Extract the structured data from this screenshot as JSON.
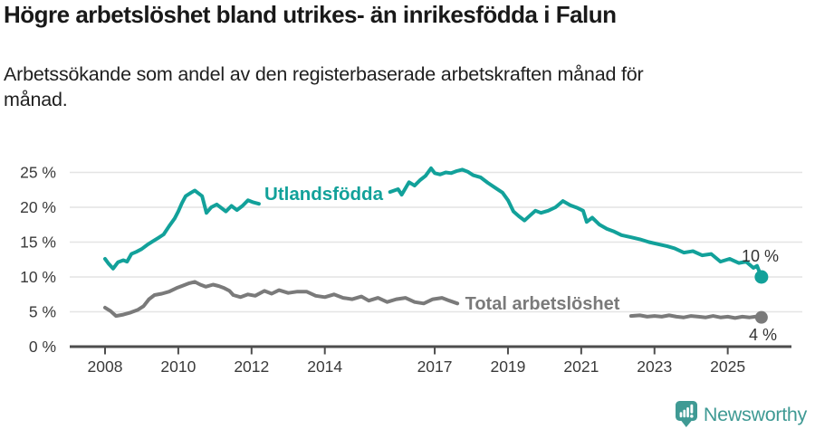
{
  "header": {
    "title": "Högre arbetslöshet bland utrikes- än inrikesfödda i Falun",
    "subtitle": "Arbetssökande som andel av den registerbaserade arbetskraften månad för\nmånad."
  },
  "footer": {
    "brand": "Newsworthy",
    "icon": "newsworthy-pin-barchart-icon"
  },
  "colors": {
    "accent_teal": "#12a19a",
    "series_gray": "#7a7a7a",
    "grid": "#e4e4e4",
    "axis": "#4d4d4d",
    "tick_text": "#3a3a3a",
    "annotation_text": "#333333",
    "title_text": "#191919",
    "brand_teal": "#3f9a94"
  },
  "chart_data": {
    "type": "line",
    "title": "Högre arbetslöshet bland utrikes- än inrikesfödda i Falun",
    "xlabel": "",
    "ylabel": "",
    "grid": true,
    "x_axis": {
      "ticks": [
        2008,
        2010,
        2012,
        2014,
        2017,
        2019,
        2021,
        2023,
        2025
      ]
    },
    "y_axis": {
      "ticks": [
        0,
        5,
        10,
        15,
        20,
        25
      ],
      "tick_labels": [
        "0 %",
        "5 %",
        "10 %",
        "15 %",
        "20 %",
        "25 %"
      ],
      "range": [
        0,
        26.5
      ]
    },
    "x_range": [
      2008,
      2025.92
    ],
    "series": [
      {
        "name": "Utlandsfödda",
        "color": "#12a19a",
        "end_label": "10 %",
        "end_value": 10.0,
        "segments": [
          [
            [
              2008.0,
              12.6
            ],
            [
              2008.1,
              11.9
            ],
            [
              2008.22,
              11.2
            ],
            [
              2008.35,
              12.1
            ],
            [
              2008.5,
              12.4
            ],
            [
              2008.6,
              12.2
            ],
            [
              2008.72,
              13.3
            ],
            [
              2008.85,
              13.6
            ],
            [
              2009.0,
              14.0
            ],
            [
              2009.15,
              14.6
            ],
            [
              2009.3,
              15.1
            ],
            [
              2009.45,
              15.6
            ],
            [
              2009.6,
              16.1
            ],
            [
              2009.75,
              17.3
            ],
            [
              2009.9,
              18.4
            ],
            [
              2010.0,
              19.4
            ],
            [
              2010.1,
              20.6
            ],
            [
              2010.2,
              21.6
            ],
            [
              2010.35,
              22.1
            ],
            [
              2010.45,
              22.4
            ],
            [
              2010.55,
              22.0
            ],
            [
              2010.65,
              21.6
            ],
            [
              2010.77,
              19.2
            ],
            [
              2010.9,
              20.0
            ],
            [
              2011.05,
              20.4
            ],
            [
              2011.2,
              19.8
            ],
            [
              2011.3,
              19.4
            ],
            [
              2011.45,
              20.2
            ],
            [
              2011.6,
              19.6
            ],
            [
              2011.75,
              20.2
            ],
            [
              2011.9,
              21.0
            ],
            [
              2012.05,
              20.7
            ],
            [
              2012.2,
              20.5
            ]
          ],
          [
            [
              2015.78,
              22.2
            ],
            [
              2016.0,
              22.6
            ],
            [
              2016.1,
              21.8
            ],
            [
              2016.3,
              23.6
            ],
            [
              2016.45,
              23.1
            ],
            [
              2016.6,
              23.9
            ],
            [
              2016.75,
              24.5
            ],
            [
              2016.9,
              25.6
            ],
            [
              2017.0,
              24.9
            ],
            [
              2017.15,
              24.7
            ],
            [
              2017.3,
              25.0
            ],
            [
              2017.45,
              24.9
            ],
            [
              2017.6,
              25.2
            ],
            [
              2017.75,
              25.4
            ],
            [
              2017.9,
              25.1
            ],
            [
              2018.05,
              24.6
            ],
            [
              2018.25,
              24.3
            ],
            [
              2018.45,
              23.5
            ],
            [
              2018.65,
              22.8
            ],
            [
              2018.85,
              22.1
            ],
            [
              2019.0,
              21.0
            ],
            [
              2019.15,
              19.4
            ],
            [
              2019.3,
              18.7
            ],
            [
              2019.45,
              18.1
            ],
            [
              2019.6,
              18.8
            ],
            [
              2019.75,
              19.5
            ],
            [
              2019.9,
              19.2
            ],
            [
              2020.1,
              19.5
            ],
            [
              2020.3,
              20.0
            ],
            [
              2020.5,
              20.9
            ],
            [
              2020.7,
              20.3
            ],
            [
              2020.9,
              19.9
            ],
            [
              2021.05,
              19.5
            ],
            [
              2021.15,
              17.9
            ],
            [
              2021.3,
              18.5
            ],
            [
              2021.5,
              17.5
            ],
            [
              2021.7,
              16.9
            ],
            [
              2021.9,
              16.5
            ],
            [
              2022.1,
              16.0
            ],
            [
              2022.35,
              15.7
            ],
            [
              2022.6,
              15.4
            ],
            [
              2022.85,
              15.0
            ],
            [
              2023.1,
              14.7
            ],
            [
              2023.35,
              14.4
            ],
            [
              2023.55,
              14.1
            ],
            [
              2023.8,
              13.5
            ],
            [
              2024.05,
              13.7
            ],
            [
              2024.3,
              13.1
            ],
            [
              2024.55,
              13.3
            ],
            [
              2024.8,
              12.2
            ],
            [
              2025.05,
              12.6
            ],
            [
              2025.3,
              12.0
            ],
            [
              2025.5,
              12.2
            ],
            [
              2025.7,
              11.3
            ],
            [
              2025.8,
              11.6
            ],
            [
              2025.92,
              10.0
            ]
          ]
        ]
      },
      {
        "name": "Total arbetslöshet",
        "color": "#7a7a7a",
        "end_label": "4 %",
        "end_value": 4.2,
        "segments": [
          [
            [
              2008.0,
              5.6
            ],
            [
              2008.15,
              5.1
            ],
            [
              2008.3,
              4.4
            ],
            [
              2008.5,
              4.6
            ],
            [
              2008.7,
              4.9
            ],
            [
              2008.9,
              5.3
            ],
            [
              2009.05,
              5.8
            ],
            [
              2009.2,
              6.8
            ],
            [
              2009.35,
              7.4
            ],
            [
              2009.55,
              7.6
            ],
            [
              2009.75,
              7.9
            ],
            [
              2009.95,
              8.4
            ],
            [
              2010.1,
              8.7
            ],
            [
              2010.3,
              9.1
            ],
            [
              2010.45,
              9.3
            ],
            [
              2010.6,
              8.9
            ],
            [
              2010.75,
              8.6
            ],
            [
              2010.95,
              8.9
            ],
            [
              2011.1,
              8.7
            ],
            [
              2011.25,
              8.4
            ],
            [
              2011.4,
              8.0
            ],
            [
              2011.5,
              7.4
            ],
            [
              2011.7,
              7.1
            ],
            [
              2011.9,
              7.5
            ],
            [
              2012.1,
              7.3
            ],
            [
              2012.35,
              8.0
            ],
            [
              2012.55,
              7.6
            ],
            [
              2012.75,
              8.1
            ],
            [
              2013.0,
              7.7
            ],
            [
              2013.25,
              7.9
            ],
            [
              2013.5,
              7.9
            ],
            [
              2013.75,
              7.3
            ],
            [
              2014.0,
              7.1
            ],
            [
              2014.25,
              7.5
            ],
            [
              2014.5,
              7.0
            ],
            [
              2014.75,
              6.8
            ],
            [
              2015.0,
              7.2
            ],
            [
              2015.2,
              6.6
            ],
            [
              2015.45,
              7.0
            ],
            [
              2015.7,
              6.4
            ],
            [
              2015.95,
              6.8
            ],
            [
              2016.2,
              7.0
            ],
            [
              2016.45,
              6.4
            ],
            [
              2016.7,
              6.2
            ],
            [
              2016.95,
              6.8
            ],
            [
              2017.2,
              7.0
            ],
            [
              2017.4,
              6.6
            ],
            [
              2017.62,
              6.2
            ]
          ],
          [
            [
              2022.36,
              4.4
            ],
            [
              2022.6,
              4.5
            ],
            [
              2022.8,
              4.3
            ],
            [
              2023.0,
              4.4
            ],
            [
              2023.2,
              4.3
            ],
            [
              2023.4,
              4.5
            ],
            [
              2023.6,
              4.3
            ],
            [
              2023.8,
              4.2
            ],
            [
              2024.0,
              4.4
            ],
            [
              2024.2,
              4.3
            ],
            [
              2024.4,
              4.2
            ],
            [
              2024.6,
              4.4
            ],
            [
              2024.8,
              4.2
            ],
            [
              2025.0,
              4.3
            ],
            [
              2025.2,
              4.1
            ],
            [
              2025.4,
              4.3
            ],
            [
              2025.6,
              4.2
            ],
            [
              2025.75,
              4.3
            ],
            [
              2025.92,
              4.2
            ]
          ]
        ]
      }
    ],
    "legend_position": "inline-labels"
  }
}
